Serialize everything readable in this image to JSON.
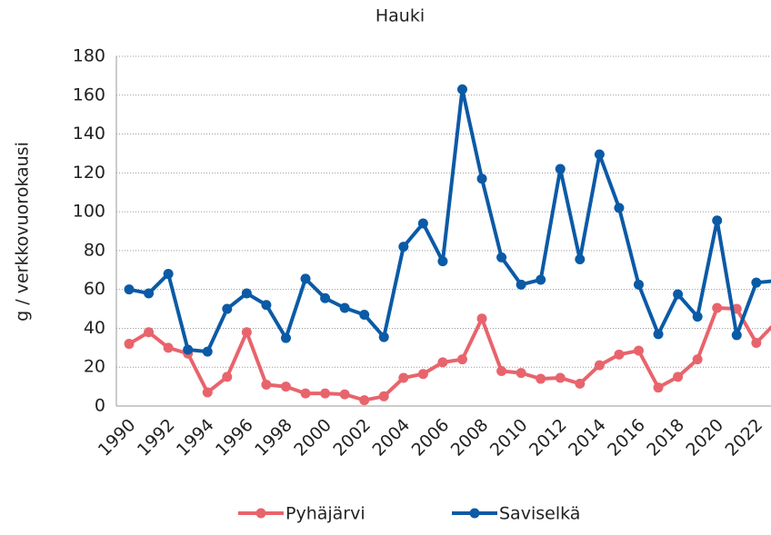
{
  "chart_data": {
    "type": "line",
    "title": "Hauki",
    "y_label": "g / verkkovuorokausi",
    "categories": [
      "1990",
      null,
      "1992",
      null,
      "1994",
      null,
      "1996",
      null,
      "1998",
      null,
      "2000",
      null,
      "2002",
      null,
      "2004",
      null,
      "2006",
      null,
      "2008",
      null,
      "2010",
      null,
      "2012",
      null,
      "2014",
      null,
      "2016",
      null,
      "2018",
      null,
      "2020",
      null,
      "2022",
      null
    ],
    "series": [
      {
        "name": "Pyhäjärvi",
        "color": "#e8646c",
        "values": [
          32,
          38,
          30,
          27,
          7,
          15,
          38,
          11,
          10,
          6.5,
          6.5,
          6,
          3,
          5,
          14.5,
          16.5,
          22.5,
          24,
          45,
          18,
          17,
          14,
          14.5,
          11.5,
          21,
          26.5,
          28.5,
          9.5,
          15,
          24,
          50.5,
          50,
          32.5,
          43
        ]
      },
      {
        "name": "Saviselkä",
        "color": "#0b5aa6",
        "values": [
          60,
          58,
          68,
          29,
          28,
          50,
          58,
          52,
          35,
          65.5,
          55.5,
          50.5,
          47,
          35.5,
          82,
          94,
          74.5,
          163,
          117,
          76.5,
          62.5,
          65,
          122,
          75.5,
          129.5,
          102,
          62.5,
          37,
          57.5,
          46,
          95.5,
          36.5,
          63.5,
          64.5
        ]
      }
    ],
    "ylim": [
      0,
      180
    ],
    "yticks": [
      0,
      20,
      40,
      60,
      80,
      100,
      120,
      140,
      160,
      180
    ],
    "grid": true
  }
}
